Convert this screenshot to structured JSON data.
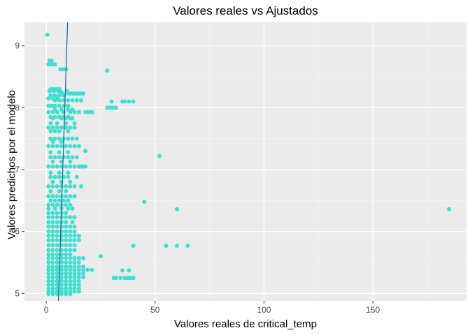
{
  "chart_data": {
    "type": "scatter",
    "title": "Valores reales vs Ajustados",
    "xlabel": "Valores reales de critical_temp",
    "ylabel": "Valores predichos por el modelo",
    "xlim": [
      -10,
      193
    ],
    "ylim": [
      4.88,
      9.38
    ],
    "x_ticks": [
      0,
      50,
      100,
      150
    ],
    "y_ticks": [
      5,
      6,
      7,
      8,
      9
    ],
    "grid": true,
    "point_color": "#40E0D0",
    "line_color": "#1f5f8b",
    "panel_background": "#ebebeb",
    "points": [
      {
        "x": 0.5,
        "y": 9.18
      },
      {
        "x": 1.5,
        "y": 8.76
      },
      {
        "x": 2.5,
        "y": 8.76
      },
      {
        "x": 1.0,
        "y": 8.7
      },
      {
        "x": 2.0,
        "y": 8.7
      },
      {
        "x": 3.0,
        "y": 8.7
      },
      {
        "x": 4.0,
        "y": 8.7
      },
      {
        "x": 6.5,
        "y": 8.62
      },
      {
        "x": 7.5,
        "y": 8.62
      },
      {
        "x": 9.0,
        "y": 8.62
      },
      {
        "x": 28.0,
        "y": 8.6
      },
      {
        "x": 2,
        "y": 8.3
      },
      {
        "x": 3,
        "y": 8.3
      },
      {
        "x": 4,
        "y": 8.3
      },
      {
        "x": 5,
        "y": 8.3
      },
      {
        "x": 6,
        "y": 8.3
      },
      {
        "x": 1.5,
        "y": 8.27
      },
      {
        "x": 3.5,
        "y": 8.27
      },
      {
        "x": 5.5,
        "y": 8.27
      },
      {
        "x": 7,
        "y": 8.25
      },
      {
        "x": 9.5,
        "y": 8.27
      },
      {
        "x": 10,
        "y": 8.23
      },
      {
        "x": 11,
        "y": 8.23
      },
      {
        "x": 12,
        "y": 8.23
      },
      {
        "x": 13,
        "y": 8.23
      },
      {
        "x": 14,
        "y": 8.23
      },
      {
        "x": 15,
        "y": 8.23
      },
      {
        "x": 16,
        "y": 8.23
      },
      {
        "x": 17,
        "y": 8.23
      },
      {
        "x": 2,
        "y": 8.2
      },
      {
        "x": 4,
        "y": 8.2
      },
      {
        "x": 6,
        "y": 8.2
      },
      {
        "x": 8,
        "y": 8.2
      },
      {
        "x": 1,
        "y": 8.15
      },
      {
        "x": 3,
        "y": 8.15
      },
      {
        "x": 5,
        "y": 8.15
      },
      {
        "x": 4,
        "y": 8.12
      },
      {
        "x": 6,
        "y": 8.12
      },
      {
        "x": 8,
        "y": 8.12
      },
      {
        "x": 10,
        "y": 8.12
      },
      {
        "x": 12,
        "y": 8.12
      },
      {
        "x": 14,
        "y": 8.12
      },
      {
        "x": 16,
        "y": 8.12
      },
      {
        "x": 30,
        "y": 8.1
      },
      {
        "x": 35,
        "y": 8.1
      },
      {
        "x": 36,
        "y": 8.1
      },
      {
        "x": 38,
        "y": 8.1
      },
      {
        "x": 40,
        "y": 8.1
      },
      {
        "x": 1,
        "y": 8.03
      },
      {
        "x": 2,
        "y": 8.03
      },
      {
        "x": 3,
        "y": 8.03
      },
      {
        "x": 4,
        "y": 8.03
      },
      {
        "x": 6,
        "y": 8.03
      },
      {
        "x": 8,
        "y": 8.03
      },
      {
        "x": 10,
        "y": 8.03
      },
      {
        "x": 28,
        "y": 8.0
      },
      {
        "x": 29,
        "y": 8.0
      },
      {
        "x": 30,
        "y": 8.0
      },
      {
        "x": 31,
        "y": 8.0
      },
      {
        "x": 32,
        "y": 8.0
      },
      {
        "x": 4,
        "y": 7.97
      },
      {
        "x": 7,
        "y": 7.97
      },
      {
        "x": 10,
        "y": 7.97
      },
      {
        "x": 12,
        "y": 7.97
      },
      {
        "x": 1,
        "y": 7.93
      },
      {
        "x": 3,
        "y": 7.93
      },
      {
        "x": 5,
        "y": 7.93
      },
      {
        "x": 8,
        "y": 7.93
      },
      {
        "x": 11,
        "y": 7.93
      },
      {
        "x": 13,
        "y": 7.93
      },
      {
        "x": 15,
        "y": 7.93
      },
      {
        "x": 18,
        "y": 7.93
      },
      {
        "x": 19,
        "y": 7.93
      },
      {
        "x": 20,
        "y": 7.93
      },
      {
        "x": 21,
        "y": 7.93
      },
      {
        "x": 2,
        "y": 7.85
      },
      {
        "x": 4,
        "y": 7.85
      },
      {
        "x": 6,
        "y": 7.85
      },
      {
        "x": 8,
        "y": 7.85
      },
      {
        "x": 10,
        "y": 7.85
      },
      {
        "x": 3,
        "y": 7.83
      },
      {
        "x": 7,
        "y": 7.83
      },
      {
        "x": 9,
        "y": 7.83
      },
      {
        "x": 11,
        "y": 7.83
      },
      {
        "x": 12,
        "y": 7.83
      },
      {
        "x": 2,
        "y": 7.75
      },
      {
        "x": 5,
        "y": 7.75
      },
      {
        "x": 9,
        "y": 7.75
      },
      {
        "x": 13,
        "y": 7.75
      },
      {
        "x": 1,
        "y": 7.68
      },
      {
        "x": 3,
        "y": 7.68
      },
      {
        "x": 5,
        "y": 7.68
      },
      {
        "x": 7,
        "y": 7.68
      },
      {
        "x": 9,
        "y": 7.68
      },
      {
        "x": 11,
        "y": 7.68
      },
      {
        "x": 13,
        "y": 7.68
      },
      {
        "x": 2,
        "y": 7.62
      },
      {
        "x": 4,
        "y": 7.62
      },
      {
        "x": 6,
        "y": 7.62
      },
      {
        "x": 10,
        "y": 7.62
      },
      {
        "x": 2,
        "y": 7.5
      },
      {
        "x": 4,
        "y": 7.5
      },
      {
        "x": 6,
        "y": 7.5
      },
      {
        "x": 8,
        "y": 7.5
      },
      {
        "x": 10,
        "y": 7.5
      },
      {
        "x": 12,
        "y": 7.5
      },
      {
        "x": 14,
        "y": 7.5
      },
      {
        "x": 3,
        "y": 7.45
      },
      {
        "x": 7,
        "y": 7.45
      },
      {
        "x": 1,
        "y": 7.38
      },
      {
        "x": 3,
        "y": 7.38
      },
      {
        "x": 5,
        "y": 7.38
      },
      {
        "x": 7,
        "y": 7.38
      },
      {
        "x": 9,
        "y": 7.38
      },
      {
        "x": 11,
        "y": 7.38
      },
      {
        "x": 13,
        "y": 7.38
      },
      {
        "x": 15,
        "y": 7.38
      },
      {
        "x": 18,
        "y": 7.3
      },
      {
        "x": 2,
        "y": 7.28
      },
      {
        "x": 6,
        "y": 7.28
      },
      {
        "x": 10,
        "y": 7.28
      },
      {
        "x": 2,
        "y": 7.2
      },
      {
        "x": 4,
        "y": 7.2
      },
      {
        "x": 6,
        "y": 7.2
      },
      {
        "x": 8,
        "y": 7.2
      },
      {
        "x": 10,
        "y": 7.2
      },
      {
        "x": 12,
        "y": 7.2
      },
      {
        "x": 14,
        "y": 7.2
      },
      {
        "x": 52,
        "y": 7.22
      },
      {
        "x": 3,
        "y": 7.13
      },
      {
        "x": 7,
        "y": 7.13
      },
      {
        "x": 11,
        "y": 7.13
      },
      {
        "x": 1,
        "y": 7.05
      },
      {
        "x": 3,
        "y": 7.05
      },
      {
        "x": 5,
        "y": 7.05
      },
      {
        "x": 7,
        "y": 7.05
      },
      {
        "x": 9,
        "y": 7.05
      },
      {
        "x": 11,
        "y": 7.05
      },
      {
        "x": 13,
        "y": 7.05
      },
      {
        "x": 15,
        "y": 7.05
      },
      {
        "x": 16,
        "y": 7.05
      },
      {
        "x": 17,
        "y": 7.05
      },
      {
        "x": 18,
        "y": 7.05
      },
      {
        "x": 2,
        "y": 6.95
      },
      {
        "x": 6,
        "y": 6.95
      },
      {
        "x": 10,
        "y": 6.95
      },
      {
        "x": 2,
        "y": 6.88
      },
      {
        "x": 4,
        "y": 6.88
      },
      {
        "x": 6,
        "y": 6.88
      },
      {
        "x": 8,
        "y": 6.88
      },
      {
        "x": 10,
        "y": 6.88
      },
      {
        "x": 14,
        "y": 6.88
      },
      {
        "x": 3,
        "y": 6.8
      },
      {
        "x": 7,
        "y": 6.8
      },
      {
        "x": 11,
        "y": 6.8
      },
      {
        "x": 1,
        "y": 6.73
      },
      {
        "x": 3,
        "y": 6.73
      },
      {
        "x": 5,
        "y": 6.73
      },
      {
        "x": 7,
        "y": 6.73
      },
      {
        "x": 9,
        "y": 6.73
      },
      {
        "x": 11,
        "y": 6.73
      },
      {
        "x": 13,
        "y": 6.73
      },
      {
        "x": 16,
        "y": 6.73
      },
      {
        "x": 2,
        "y": 6.65
      },
      {
        "x": 6,
        "y": 6.65
      },
      {
        "x": 9,
        "y": 6.65
      },
      {
        "x": 1,
        "y": 6.57
      },
      {
        "x": 3,
        "y": 6.57
      },
      {
        "x": 5,
        "y": 6.57
      },
      {
        "x": 7,
        "y": 6.57
      },
      {
        "x": 9,
        "y": 6.57
      },
      {
        "x": 11,
        "y": 6.57
      },
      {
        "x": 13,
        "y": 6.57
      },
      {
        "x": 2,
        "y": 6.5
      },
      {
        "x": 4,
        "y": 6.5
      },
      {
        "x": 6,
        "y": 6.5
      },
      {
        "x": 8,
        "y": 6.5
      },
      {
        "x": 10,
        "y": 6.5
      },
      {
        "x": 45,
        "y": 6.48
      },
      {
        "x": 1,
        "y": 6.43
      },
      {
        "x": 3,
        "y": 6.43
      },
      {
        "x": 5,
        "y": 6.43
      },
      {
        "x": 7,
        "y": 6.43
      },
      {
        "x": 9,
        "y": 6.43
      },
      {
        "x": 11,
        "y": 6.43
      },
      {
        "x": 1,
        "y": 6.37
      },
      {
        "x": 4,
        "y": 6.37
      },
      {
        "x": 7,
        "y": 6.37
      },
      {
        "x": 10,
        "y": 6.37
      },
      {
        "x": 12,
        "y": 6.37
      },
      {
        "x": 60,
        "y": 6.36
      },
      {
        "x": 185,
        "y": 6.36
      },
      {
        "x": 1,
        "y": 6.3
      },
      {
        "x": 3,
        "y": 6.3
      },
      {
        "x": 5,
        "y": 6.3
      },
      {
        "x": 7,
        "y": 6.3
      },
      {
        "x": 9,
        "y": 6.3
      },
      {
        "x": 1,
        "y": 6.23
      },
      {
        "x": 3,
        "y": 6.23
      },
      {
        "x": 5,
        "y": 6.23
      },
      {
        "x": 7,
        "y": 6.23
      },
      {
        "x": 9,
        "y": 6.23
      },
      {
        "x": 11,
        "y": 6.23
      },
      {
        "x": 13,
        "y": 6.23
      },
      {
        "x": 1,
        "y": 6.15
      },
      {
        "x": 3,
        "y": 6.15
      },
      {
        "x": 5,
        "y": 6.15
      },
      {
        "x": 7,
        "y": 6.15
      },
      {
        "x": 9,
        "y": 6.15
      },
      {
        "x": 12,
        "y": 6.15
      },
      {
        "x": 1,
        "y": 6.08
      },
      {
        "x": 3,
        "y": 6.08
      },
      {
        "x": 5,
        "y": 6.08
      },
      {
        "x": 7,
        "y": 6.08
      },
      {
        "x": 9,
        "y": 6.08
      },
      {
        "x": 11,
        "y": 6.08
      },
      {
        "x": 13,
        "y": 6.08
      },
      {
        "x": 1,
        "y": 6.0
      },
      {
        "x": 3,
        "y": 6.0
      },
      {
        "x": 5,
        "y": 6.0
      },
      {
        "x": 7,
        "y": 6.0
      },
      {
        "x": 9,
        "y": 6.0
      },
      {
        "x": 11,
        "y": 6.0
      },
      {
        "x": 13,
        "y": 6.0
      },
      {
        "x": 1,
        "y": 5.93
      },
      {
        "x": 3,
        "y": 5.93
      },
      {
        "x": 5,
        "y": 5.93
      },
      {
        "x": 7,
        "y": 5.93
      },
      {
        "x": 9,
        "y": 5.93
      },
      {
        "x": 11,
        "y": 5.93
      },
      {
        "x": 13,
        "y": 5.93
      },
      {
        "x": 15,
        "y": 5.93
      },
      {
        "x": 1,
        "y": 5.86
      },
      {
        "x": 3,
        "y": 5.86
      },
      {
        "x": 5,
        "y": 5.86
      },
      {
        "x": 7,
        "y": 5.86
      },
      {
        "x": 9,
        "y": 5.86
      },
      {
        "x": 11,
        "y": 5.86
      },
      {
        "x": 13,
        "y": 5.86
      },
      {
        "x": 15,
        "y": 5.86
      },
      {
        "x": 1,
        "y": 5.78
      },
      {
        "x": 3,
        "y": 5.78
      },
      {
        "x": 5,
        "y": 5.78
      },
      {
        "x": 7,
        "y": 5.78
      },
      {
        "x": 9,
        "y": 5.78
      },
      {
        "x": 11,
        "y": 5.78
      },
      {
        "x": 13,
        "y": 5.78
      },
      {
        "x": 40,
        "y": 5.77
      },
      {
        "x": 55,
        "y": 5.77
      },
      {
        "x": 60,
        "y": 5.77
      },
      {
        "x": 65,
        "y": 5.77
      },
      {
        "x": 1,
        "y": 5.7
      },
      {
        "x": 3,
        "y": 5.7
      },
      {
        "x": 5,
        "y": 5.7
      },
      {
        "x": 7,
        "y": 5.7
      },
      {
        "x": 9,
        "y": 5.7
      },
      {
        "x": 11,
        "y": 5.7
      },
      {
        "x": 13,
        "y": 5.7
      },
      {
        "x": 1,
        "y": 5.63
      },
      {
        "x": 3,
        "y": 5.63
      },
      {
        "x": 5,
        "y": 5.63
      },
      {
        "x": 7,
        "y": 5.63
      },
      {
        "x": 9,
        "y": 5.63
      },
      {
        "x": 11,
        "y": 5.63
      },
      {
        "x": 25,
        "y": 5.6
      },
      {
        "x": 1,
        "y": 5.57
      },
      {
        "x": 3,
        "y": 5.57
      },
      {
        "x": 5,
        "y": 5.57
      },
      {
        "x": 7,
        "y": 5.57
      },
      {
        "x": 9,
        "y": 5.57
      },
      {
        "x": 11,
        "y": 5.57
      },
      {
        "x": 13,
        "y": 5.57
      },
      {
        "x": 15,
        "y": 5.57
      },
      {
        "x": 17,
        "y": 5.57
      },
      {
        "x": 1,
        "y": 5.5
      },
      {
        "x": 3,
        "y": 5.5
      },
      {
        "x": 5,
        "y": 5.5
      },
      {
        "x": 7,
        "y": 5.5
      },
      {
        "x": 9,
        "y": 5.5
      },
      {
        "x": 11,
        "y": 5.5
      },
      {
        "x": 13,
        "y": 5.5
      },
      {
        "x": 15,
        "y": 5.5
      },
      {
        "x": 1,
        "y": 5.43
      },
      {
        "x": 3,
        "y": 5.43
      },
      {
        "x": 5,
        "y": 5.43
      },
      {
        "x": 7,
        "y": 5.43
      },
      {
        "x": 9,
        "y": 5.43
      },
      {
        "x": 11,
        "y": 5.43
      },
      {
        "x": 13,
        "y": 5.43
      },
      {
        "x": 15,
        "y": 5.43
      },
      {
        "x": 17,
        "y": 5.43
      },
      {
        "x": 1,
        "y": 5.38
      },
      {
        "x": 3,
        "y": 5.38
      },
      {
        "x": 5,
        "y": 5.38
      },
      {
        "x": 7,
        "y": 5.38
      },
      {
        "x": 9,
        "y": 5.38
      },
      {
        "x": 11,
        "y": 5.38
      },
      {
        "x": 13,
        "y": 5.38
      },
      {
        "x": 15,
        "y": 5.38
      },
      {
        "x": 17,
        "y": 5.38
      },
      {
        "x": 19,
        "y": 5.38
      },
      {
        "x": 21,
        "y": 5.38
      },
      {
        "x": 35,
        "y": 5.37
      },
      {
        "x": 38,
        "y": 5.37
      },
      {
        "x": 1,
        "y": 5.32
      },
      {
        "x": 3,
        "y": 5.32
      },
      {
        "x": 5,
        "y": 5.32
      },
      {
        "x": 7,
        "y": 5.32
      },
      {
        "x": 9,
        "y": 5.32
      },
      {
        "x": 11,
        "y": 5.32
      },
      {
        "x": 13,
        "y": 5.32
      },
      {
        "x": 15,
        "y": 5.32
      },
      {
        "x": 17,
        "y": 5.32
      },
      {
        "x": 1,
        "y": 5.26
      },
      {
        "x": 3,
        "y": 5.26
      },
      {
        "x": 5,
        "y": 5.26
      },
      {
        "x": 7,
        "y": 5.26
      },
      {
        "x": 9,
        "y": 5.26
      },
      {
        "x": 11,
        "y": 5.26
      },
      {
        "x": 13,
        "y": 5.26
      },
      {
        "x": 15,
        "y": 5.26
      },
      {
        "x": 17,
        "y": 5.26
      },
      {
        "x": 31,
        "y": 5.25
      },
      {
        "x": 32,
        "y": 5.25
      },
      {
        "x": 34,
        "y": 5.25
      },
      {
        "x": 36,
        "y": 5.25
      },
      {
        "x": 37,
        "y": 5.25
      },
      {
        "x": 38,
        "y": 5.25
      },
      {
        "x": 39,
        "y": 5.25
      },
      {
        "x": 40,
        "y": 5.25
      },
      {
        "x": 1,
        "y": 5.2
      },
      {
        "x": 3,
        "y": 5.2
      },
      {
        "x": 5,
        "y": 5.2
      },
      {
        "x": 7,
        "y": 5.2
      },
      {
        "x": 9,
        "y": 5.2
      },
      {
        "x": 11,
        "y": 5.2
      },
      {
        "x": 13,
        "y": 5.2
      },
      {
        "x": 15,
        "y": 5.2
      },
      {
        "x": 1,
        "y": 5.14
      },
      {
        "x": 3,
        "y": 5.14
      },
      {
        "x": 5,
        "y": 5.14
      },
      {
        "x": 7,
        "y": 5.14
      },
      {
        "x": 9,
        "y": 5.14
      },
      {
        "x": 11,
        "y": 5.14
      },
      {
        "x": 13,
        "y": 5.14
      },
      {
        "x": 15,
        "y": 5.14
      },
      {
        "x": 1,
        "y": 5.08
      },
      {
        "x": 3,
        "y": 5.08
      },
      {
        "x": 5,
        "y": 5.08
      },
      {
        "x": 7,
        "y": 5.08
      },
      {
        "x": 9,
        "y": 5.08
      },
      {
        "x": 11,
        "y": 5.08
      },
      {
        "x": 13,
        "y": 5.08
      },
      {
        "x": 15,
        "y": 5.08
      },
      {
        "x": 1,
        "y": 5.03
      },
      {
        "x": 3,
        "y": 5.03
      },
      {
        "x": 5,
        "y": 5.03
      },
      {
        "x": 7,
        "y": 5.03
      },
      {
        "x": 9,
        "y": 5.03
      },
      {
        "x": 11,
        "y": 5.03
      },
      {
        "x": 13,
        "y": 5.03
      },
      {
        "x": 15,
        "y": 5.03
      },
      {
        "x": 1,
        "y": 4.99
      },
      {
        "x": 3,
        "y": 4.99
      },
      {
        "x": 5,
        "y": 4.99
      },
      {
        "x": 7,
        "y": 4.99
      },
      {
        "x": 9,
        "y": 4.99
      },
      {
        "x": 11,
        "y": 4.99
      }
    ],
    "line": {
      "x": [
        5.6,
        9.8
      ],
      "y": [
        4.88,
        9.38
      ]
    }
  }
}
